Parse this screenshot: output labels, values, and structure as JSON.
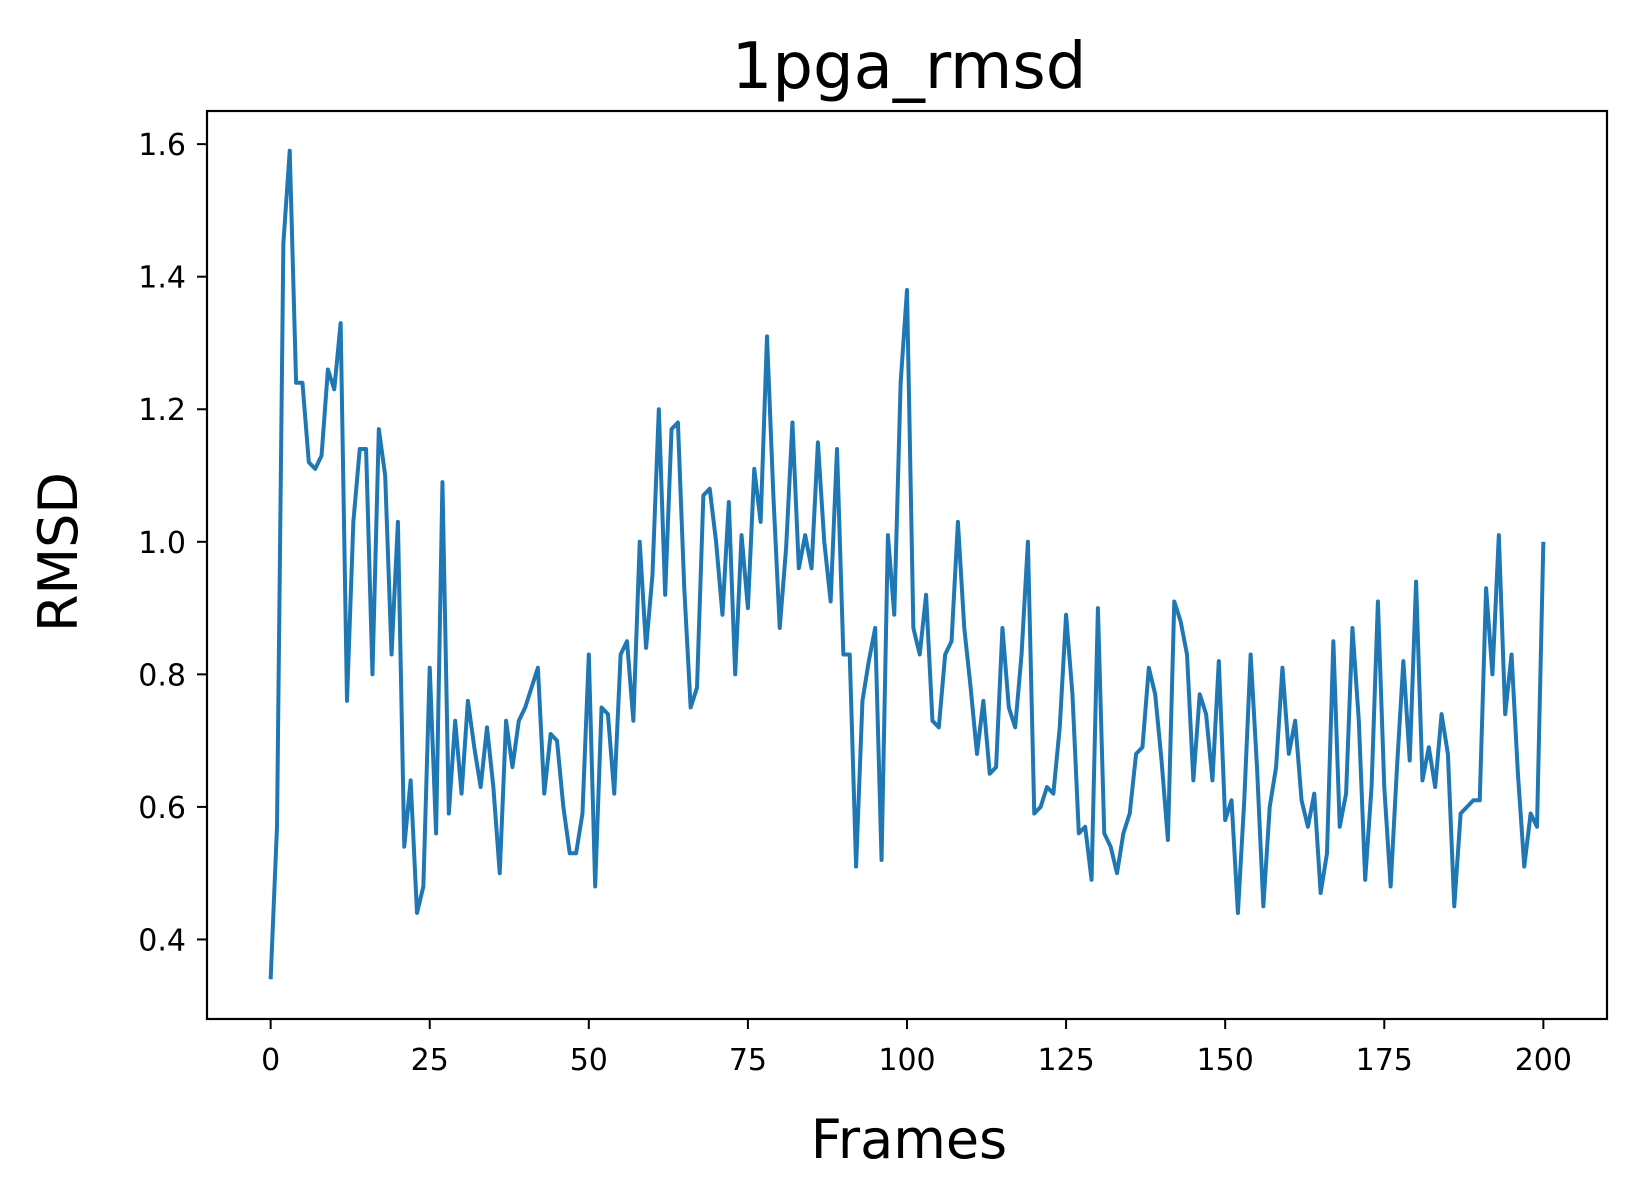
{
  "chart_data": {
    "type": "line",
    "title": "1pga_rmsd",
    "xlabel": "Frames",
    "ylabel": "RMSD",
    "xlim": [
      -10,
      210
    ],
    "ylim": [
      0.28,
      1.65
    ],
    "xticks": [
      0,
      25,
      50,
      75,
      100,
      125,
      150,
      175,
      200
    ],
    "yticks": [
      0.4,
      0.6,
      0.8,
      1.0,
      1.2,
      1.4,
      1.6
    ],
    "ytick_labels": [
      "0.4",
      "0.6",
      "0.8",
      "1.0",
      "1.2",
      "1.4",
      "1.6"
    ],
    "grid": false,
    "series_color": "#1f77b4",
    "series": [
      {
        "values": [
          0.34,
          0.57,
          1.45,
          1.59,
          1.24,
          1.24,
          1.12,
          1.11,
          1.13,
          1.26,
          1.23,
          1.33,
          0.76,
          1.03,
          1.14,
          1.14,
          0.8,
          1.17,
          1.1,
          0.83,
          1.03,
          0.54,
          0.64,
          0.44,
          0.48,
          0.81,
          0.56,
          1.09,
          0.59,
          0.73,
          0.62,
          0.76,
          0.69,
          0.63,
          0.72,
          0.63,
          0.5,
          0.73,
          0.66,
          0.73,
          0.75,
          0.78,
          0.81,
          0.62,
          0.71,
          0.7,
          0.6,
          0.53,
          0.53,
          0.59,
          0.83,
          0.48,
          0.75,
          0.74,
          0.62,
          0.83,
          0.85,
          0.73,
          1.0,
          0.84,
          0.95,
          1.2,
          0.92,
          1.17,
          1.18,
          0.93,
          0.75,
          0.78,
          1.07,
          1.08,
          1.0,
          0.89,
          1.06,
          0.8,
          1.01,
          0.9,
          1.11,
          1.03,
          1.31,
          1.07,
          0.87,
          0.99,
          1.18,
          0.96,
          1.01,
          0.96,
          1.15,
          1.0,
          0.91,
          1.14,
          0.83,
          0.83,
          0.51,
          0.76,
          0.82,
          0.87,
          0.52,
          1.01,
          0.89,
          1.24,
          1.38,
          0.87,
          0.83,
          0.92,
          0.73,
          0.72,
          0.83,
          0.85,
          1.03,
          0.87,
          0.78,
          0.68,
          0.76,
          0.65,
          0.66,
          0.87,
          0.75,
          0.72,
          0.83,
          1.0,
          0.59,
          0.6,
          0.63,
          0.62,
          0.72,
          0.89,
          0.77,
          0.56,
          0.57,
          0.49,
          0.9,
          0.56,
          0.54,
          0.5,
          0.56,
          0.59,
          0.68,
          0.69,
          0.81,
          0.77,
          0.67,
          0.55,
          0.91,
          0.88,
          0.83,
          0.64,
          0.77,
          0.74,
          0.64,
          0.82,
          0.58,
          0.61,
          0.44,
          0.61,
          0.83,
          0.66,
          0.45,
          0.6,
          0.66,
          0.81,
          0.68,
          0.73,
          0.61,
          0.57,
          0.62,
          0.47,
          0.53,
          0.85,
          0.57,
          0.62,
          0.87,
          0.73,
          0.49,
          0.63,
          0.91,
          0.63,
          0.48,
          0.66,
          0.82,
          0.67,
          0.94,
          0.64,
          0.69,
          0.63,
          0.74,
          0.68,
          0.45,
          0.59,
          0.6,
          0.61,
          0.61,
          0.93,
          0.8,
          1.01,
          0.74,
          0.83,
          0.65,
          0.51,
          0.59,
          0.57,
          1.0
        ]
      }
    ]
  }
}
